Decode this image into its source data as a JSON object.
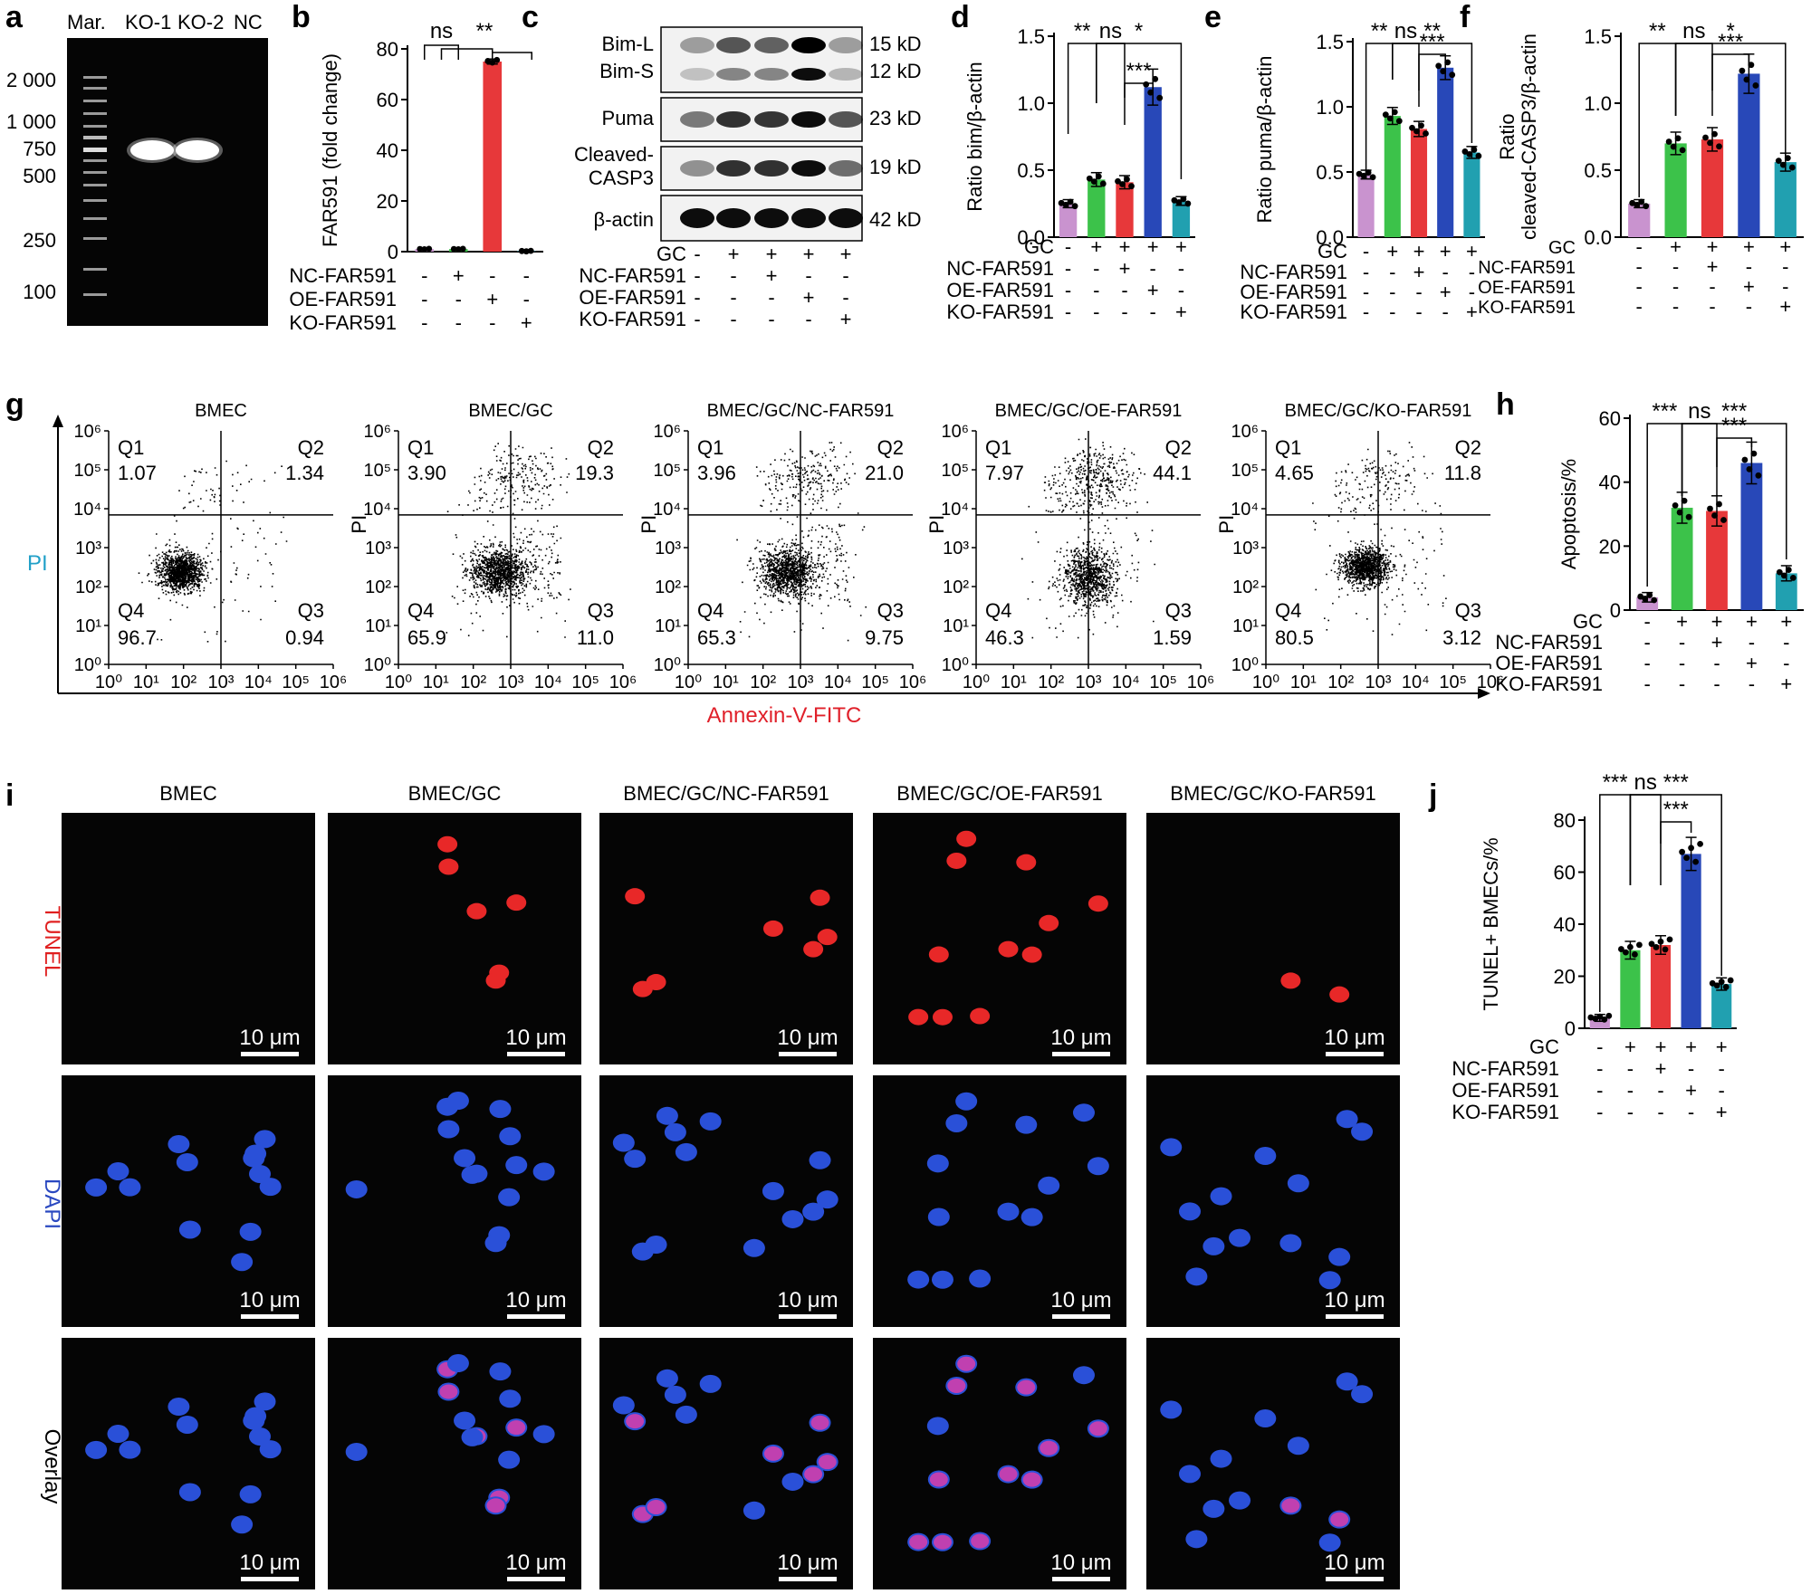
{
  "panel_labels": [
    "a",
    "b",
    "c",
    "d",
    "e",
    "f",
    "g",
    "h",
    "i",
    "j"
  ],
  "colors": {
    "purple": "#c993cf",
    "green": "#3cc24a",
    "red": "#e7383a",
    "blue": "#2848b8",
    "teal": "#21a0b0",
    "pi_label": "#21a0c8",
    "annexin_label": "#e0202a",
    "tunel_label": "#e02020",
    "dapi_label": "#2a48c0"
  },
  "gel": {
    "lane_labels": [
      "Mar.",
      "KO-1",
      "KO-2",
      "NC"
    ],
    "markers": [
      "2 000",
      "1 000",
      "750",
      "500",
      "250",
      "100"
    ]
  },
  "condition_rows": {
    "gc": "GC",
    "nc": "NC-FAR591",
    "oe": "OE-FAR591",
    "ko": "KO-FAR591",
    "gc_signs": [
      "-",
      "+",
      "+",
      "+",
      "+"
    ],
    "nc_signs": [
      "-",
      "-",
      "+",
      "-",
      "-"
    ],
    "oe_signs": [
      "-",
      "-",
      "-",
      "+",
      "-"
    ],
    "ko_signs": [
      "-",
      "-",
      "-",
      "-",
      "+"
    ]
  },
  "panel_b_rows": {
    "nc_signs": [
      "-",
      "+",
      "-",
      "-"
    ],
    "oe_signs": [
      "-",
      "-",
      "+",
      "-"
    ],
    "ko_signs": [
      "-",
      "-",
      "-",
      "+"
    ]
  },
  "western": {
    "bands": [
      "Bim-L",
      "Bim-S",
      "Puma",
      "Cleaved-\nCASP3",
      "β-actin"
    ],
    "band_line1": "Cleaved-",
    "band_line2": "CASP3",
    "sizes": [
      "15 kD",
      "12 kD",
      "23 kD",
      "19 kD",
      "42 kD"
    ]
  },
  "significance": {
    "b": [
      "ns",
      "**"
    ],
    "d": [
      "**",
      "ns",
      "*",
      "***"
    ],
    "e": [
      "**",
      "ns",
      "**",
      "***"
    ],
    "f": [
      "**",
      "ns",
      "*",
      "***"
    ],
    "h": [
      "***",
      "ns",
      "***",
      "***"
    ],
    "j": [
      "***",
      "ns",
      "***",
      "***"
    ]
  },
  "chart_data": [
    {
      "panel": "b",
      "type": "bar",
      "ylabel": "FAR591 (fold change)",
      "ylim": [
        0,
        80
      ],
      "yticks": [
        0,
        20,
        40,
        60,
        80
      ],
      "values": [
        1,
        1,
        75,
        0.2
      ],
      "colors": [
        "#c993cf",
        "#3cc24a",
        "#e7383a",
        "#21a0b0"
      ]
    },
    {
      "panel": "d",
      "type": "bar",
      "ylabel": "Ratio bim/β-actin",
      "ylim": [
        0,
        1.5
      ],
      "yticks": [
        "0.0",
        "0.5",
        "1.0",
        "1.5"
      ],
      "values": [
        0.25,
        0.43,
        0.41,
        1.12,
        0.27
      ]
    },
    {
      "panel": "e",
      "type": "bar",
      "ylabel": "Ratio puma/β-actin",
      "ylim": [
        0,
        1.5
      ],
      "yticks": [
        "0.0",
        "0.5",
        "1.0",
        "1.5"
      ],
      "values": [
        0.48,
        0.93,
        0.83,
        1.3,
        0.65
      ]
    },
    {
      "panel": "f",
      "type": "bar",
      "ylabel_line1": "Ratio",
      "ylabel_line2": "cleaved-CASP3/β-actin",
      "ylim": [
        0,
        1.5
      ],
      "yticks": [
        "0.0",
        "0.5",
        "1.0",
        "1.5"
      ],
      "values": [
        0.25,
        0.7,
        0.73,
        1.22,
        0.56
      ]
    },
    {
      "panel": "h",
      "type": "bar",
      "ylabel": "Apoptosis/%",
      "ylim": [
        0,
        60
      ],
      "yticks": [
        0,
        20,
        40,
        60
      ],
      "values": [
        4,
        32,
        31,
        46,
        11.5
      ]
    },
    {
      "panel": "j",
      "type": "bar",
      "ylabel": "TUNEL+ BMECs/%",
      "ylim": [
        0,
        80
      ],
      "yticks": [
        0,
        20,
        40,
        60,
        80
      ],
      "values": [
        4,
        30,
        32,
        67,
        17
      ]
    },
    {
      "panel": "g",
      "type": "scatter",
      "xlabel": "Annexin-V-FITC",
      "ylabel": "PI",
      "axis_ticks": [
        "10⁰",
        "10¹",
        "10²",
        "10³",
        "10⁴",
        "10⁵",
        "10⁶"
      ],
      "plots": [
        {
          "title": "BMEC",
          "q1": "1.07",
          "q2": "1.34",
          "q3": "0.94",
          "q4": "96.7"
        },
        {
          "title": "BMEC/GC",
          "q1": "3.90",
          "q2": "19.3",
          "q3": "11.0",
          "q4": "65.9"
        },
        {
          "title": "BMEC/GC/NC-FAR591",
          "q1": "3.96",
          "q2": "21.0",
          "q3": "9.75",
          "q4": "65.3"
        },
        {
          "title": "BMEC/GC/OE-FAR591",
          "q1": "7.97",
          "q2": "44.1",
          "q3": "1.59",
          "q4": "46.3"
        },
        {
          "title": "BMEC/GC/KO-FAR591",
          "q1": "4.65",
          "q2": "11.8",
          "q3": "3.12",
          "q4": "80.5"
        }
      ],
      "quadrant_names": [
        "Q1",
        "Q2",
        "Q3",
        "Q4"
      ],
      "pi_short": "PI"
    }
  ],
  "microscopy": {
    "columns": [
      "BMEC",
      "BMEC/GC",
      "BMEC/GC/NC-FAR591",
      "BMEC/GC/OE-FAR591",
      "BMEC/GC/KO-FAR591"
    ],
    "rows": [
      "TUNEL",
      "DAPI",
      "Overlay"
    ],
    "scale_bar": "10 μm"
  }
}
